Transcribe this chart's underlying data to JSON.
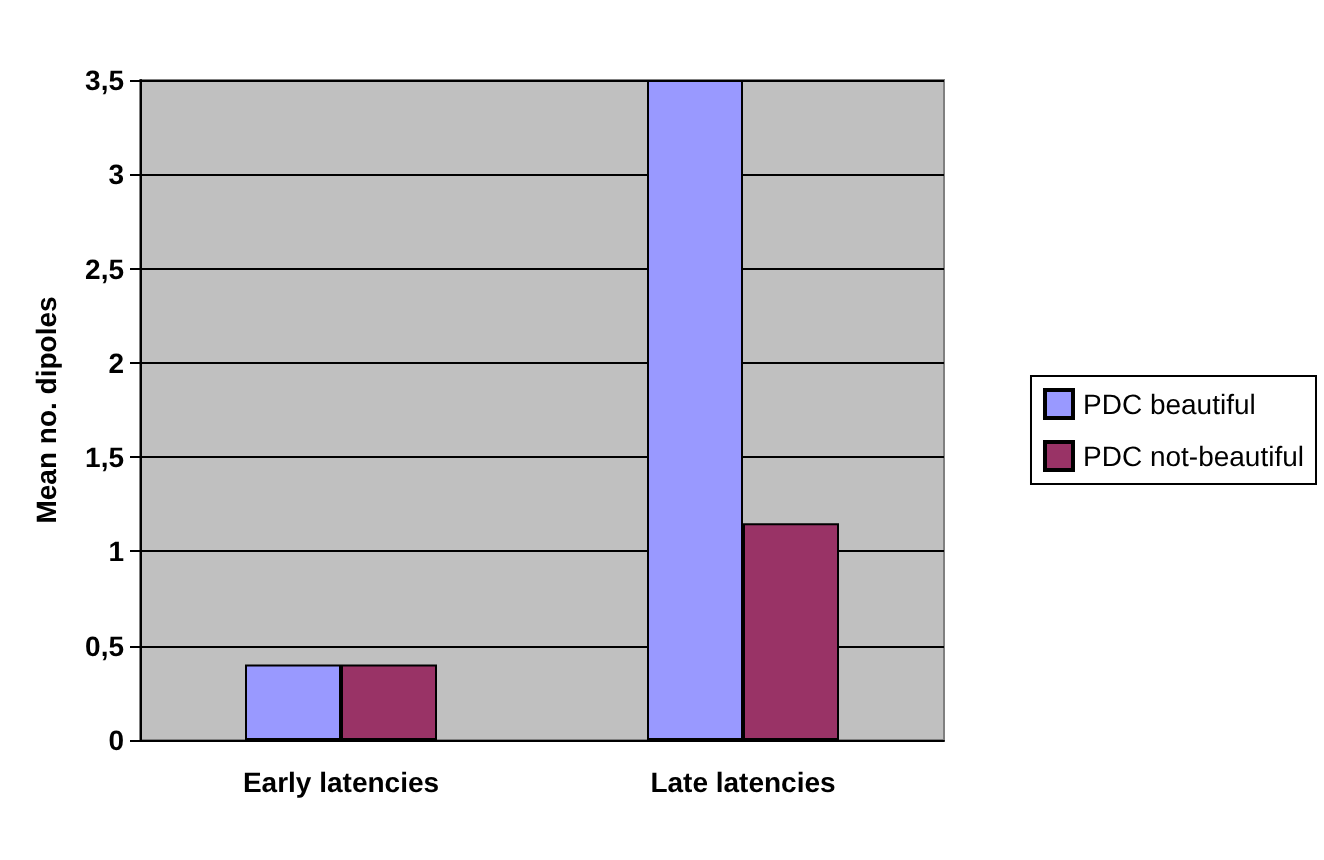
{
  "chart_data": {
    "type": "bar",
    "ylabel": "Mean no. dipoles",
    "categories": [
      "Early latencies",
      "Late latencies"
    ],
    "series": [
      {
        "name": "PDC beautiful",
        "color": "#9999ff",
        "values": [
          0.4,
          3.5
        ]
      },
      {
        "name": "PDC not-beautiful",
        "color": "#993366",
        "values": [
          0.4,
          1.15
        ]
      }
    ],
    "ylim": [
      0,
      3.5
    ],
    "yticks": [
      0,
      {
        "value": 0.5,
        "label": "0,5"
      },
      1,
      {
        "value": 1.5,
        "label": "1,5"
      },
      2,
      {
        "value": 2.5,
        "label": "2,5"
      },
      3,
      {
        "value": 3.5,
        "label": "3,5"
      }
    ],
    "grid": "y",
    "legend": "right"
  }
}
